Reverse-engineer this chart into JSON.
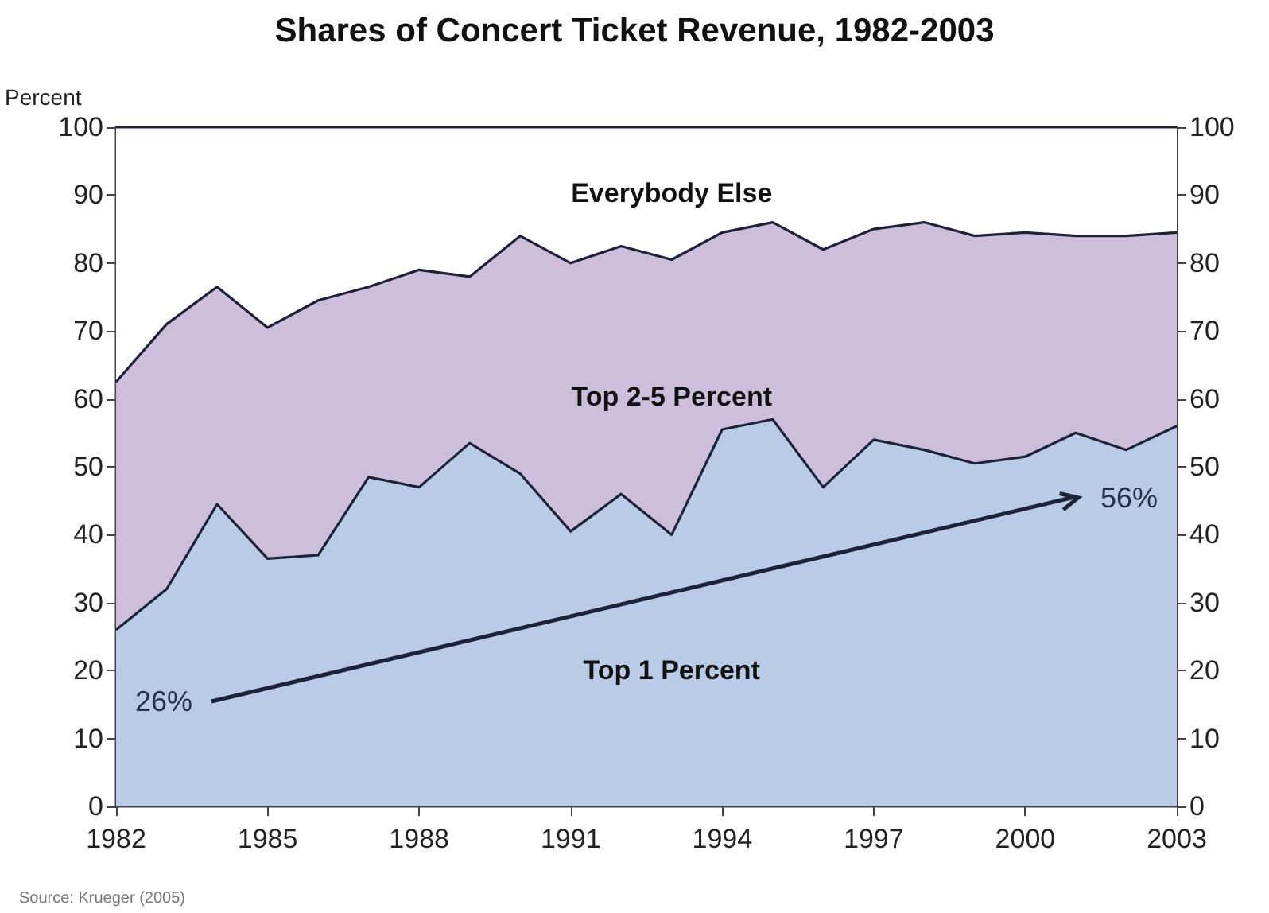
{
  "chart_data": {
    "type": "area",
    "title": "Shares of Concert Ticket Revenue, 1982-2003",
    "ylabel": "Percent",
    "x": [
      1982,
      1983,
      1984,
      1985,
      1986,
      1987,
      1988,
      1989,
      1990,
      1991,
      1992,
      1993,
      1994,
      1995,
      1996,
      1997,
      1998,
      1999,
      2000,
      2001,
      2002,
      2003
    ],
    "stacked": true,
    "series": [
      {
        "name": "Top 1 Percent",
        "color": "#b9cbe6",
        "values": [
          26,
          32,
          44.5,
          36.5,
          37,
          48.5,
          47,
          53.5,
          49,
          40.5,
          46,
          40,
          55.5,
          57,
          47,
          54,
          52.5,
          50.5,
          51.5,
          55,
          52.5,
          56
        ]
      },
      {
        "name": "Top 2-5 Percent",
        "color": "#cdbfdc",
        "values": [
          36.5,
          39,
          32,
          34,
          37.5,
          28,
          32,
          24.5,
          35,
          39.5,
          36.5,
          40.5,
          29,
          29,
          35,
          31,
          33.5,
          33.5,
          33,
          29,
          31.5,
          28.5
        ]
      },
      {
        "name": "Everybody Else",
        "color": "#ffffff",
        "values": [
          37.5,
          29,
          23.5,
          29.5,
          25.5,
          23.5,
          21,
          22,
          16,
          20,
          17.5,
          19.5,
          15.5,
          14,
          18,
          15,
          14,
          16,
          15.5,
          16,
          16,
          15.5
        ]
      }
    ],
    "xlim": [
      1982,
      2003
    ],
    "xticks": [
      1982,
      1985,
      1988,
      1991,
      1994,
      1997,
      2000,
      2003
    ],
    "ylim": [
      0,
      100
    ],
    "yticks": [
      0,
      10,
      20,
      30,
      40,
      50,
      60,
      70,
      80,
      90,
      100
    ],
    "y2lim": [
      0,
      100
    ],
    "y2ticks": [
      0,
      10,
      20,
      30,
      40,
      50,
      60,
      70,
      80,
      90,
      100
    ],
    "grid": false,
    "legend": false,
    "marker": "none",
    "line_style": "solid",
    "annotations": [
      {
        "text": "26%",
        "x": 1982,
        "y": 26
      },
      {
        "text": "56%",
        "x": 2003,
        "y": 56
      },
      "Source: Krueger (2005)"
    ]
  }
}
